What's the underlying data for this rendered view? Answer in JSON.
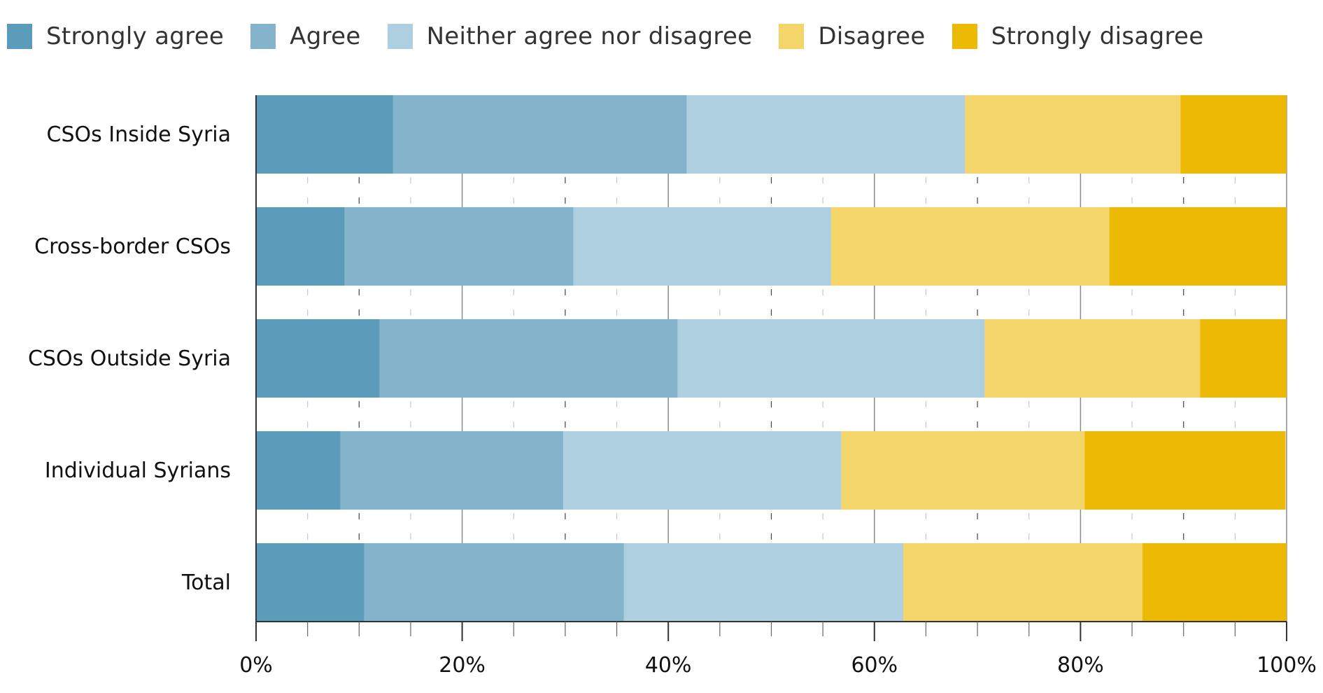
{
  "chart_data": {
    "type": "bar",
    "orientation": "horizontal",
    "stacked": true,
    "title": "",
    "xlabel": "",
    "ylabel": "",
    "xlim": [
      0,
      100
    ],
    "x_unit": "%",
    "grid": true,
    "legend_position": "top-left",
    "categories": [
      "CSOs Inside Syria",
      "Cross-border CSOs",
      "CSOs Outside Syria",
      "Individual Syrians",
      "Total"
    ],
    "series": [
      {
        "name": "Strongly agree",
        "color": "#5a9cba",
        "values": [
          13.3,
          8.6,
          12.0,
          8.2,
          10.5
        ]
      },
      {
        "name": "Agree",
        "color": "#84b4cb",
        "values": [
          28.5,
          22.2,
          28.9,
          21.6,
          25.2
        ]
      },
      {
        "name": "Neither agree nor disagree",
        "color": "#adcfdf",
        "values": [
          27.0,
          25.0,
          29.8,
          27.0,
          27.1
        ]
      },
      {
        "name": "Disagree",
        "color": "#f3d56a",
        "values": [
          20.9,
          27.0,
          20.9,
          23.6,
          23.2
        ]
      },
      {
        "name": "Strongly disagree",
        "color": "#ecb904",
        "values": [
          10.3,
          17.2,
          8.4,
          19.5,
          14.0
        ]
      }
    ],
    "x_ticks": [
      0,
      20,
      40,
      60,
      80,
      100
    ],
    "x_tick_labels": [
      "0%",
      "20%",
      "40%",
      "60%",
      "80%",
      "100%"
    ]
  }
}
